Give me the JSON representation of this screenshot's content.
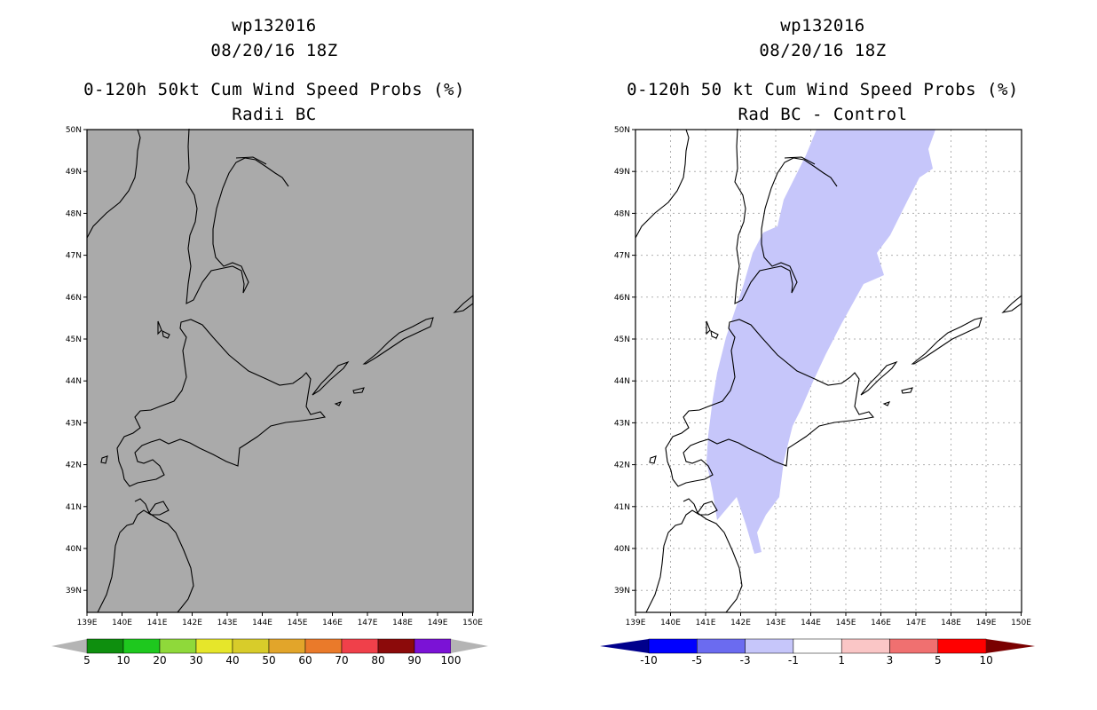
{
  "left_panel": {
    "title_line1": "wp132016",
    "title_line2": "08/20/16 18Z",
    "title_line3": "0-120h 50kt Cum Wind Speed Probs (%)",
    "title_line4": "Radii BC",
    "fill_color": "#aaaaaa",
    "colorbar_labels": [
      "5",
      "10",
      "20",
      "30",
      "40",
      "50",
      "60",
      "70",
      "80",
      "90",
      "100"
    ],
    "colorbar_colors": [
      "#0e8f0e",
      "#1ec81e",
      "#8fd93a",
      "#e6e62a",
      "#d8cc2a",
      "#e2a52a",
      "#ea7a2a",
      "#f0404a",
      "#8c0a0a",
      "#7b12d6"
    ],
    "colorbar_end_color": "#b4b4b4"
  },
  "right_panel": {
    "title_line1": "wp132016",
    "title_line2": "08/20/16 18Z",
    "title_line3": "0-120h 50 kt Cum Wind Speed Probs (%)",
    "title_line4": "Rad BC - Control",
    "fill_color": "#c6c6fa",
    "colorbar_labels": [
      "-10",
      "-5",
      "-3",
      "-1",
      "1",
      "3",
      "5",
      "10"
    ],
    "colorbar_colors": [
      "#0000ff",
      "#6b6bf0",
      "#c6c6fa",
      "#ffffff",
      "#fac6c6",
      "#f07070",
      "#ff0000"
    ],
    "colorbar_end_left": "#00008c",
    "colorbar_end_right": "#7a0000"
  },
  "axes": {
    "lat_labels": [
      "50N",
      "49N",
      "48N",
      "47N",
      "46N",
      "45N",
      "44N",
      "43N",
      "42N",
      "41N",
      "40N",
      "39N"
    ],
    "lon_labels": [
      "139E",
      "140E",
      "141E",
      "142E",
      "143E",
      "144E",
      "145E",
      "146E",
      "147E",
      "148E",
      "149E",
      "150E"
    ]
  }
}
